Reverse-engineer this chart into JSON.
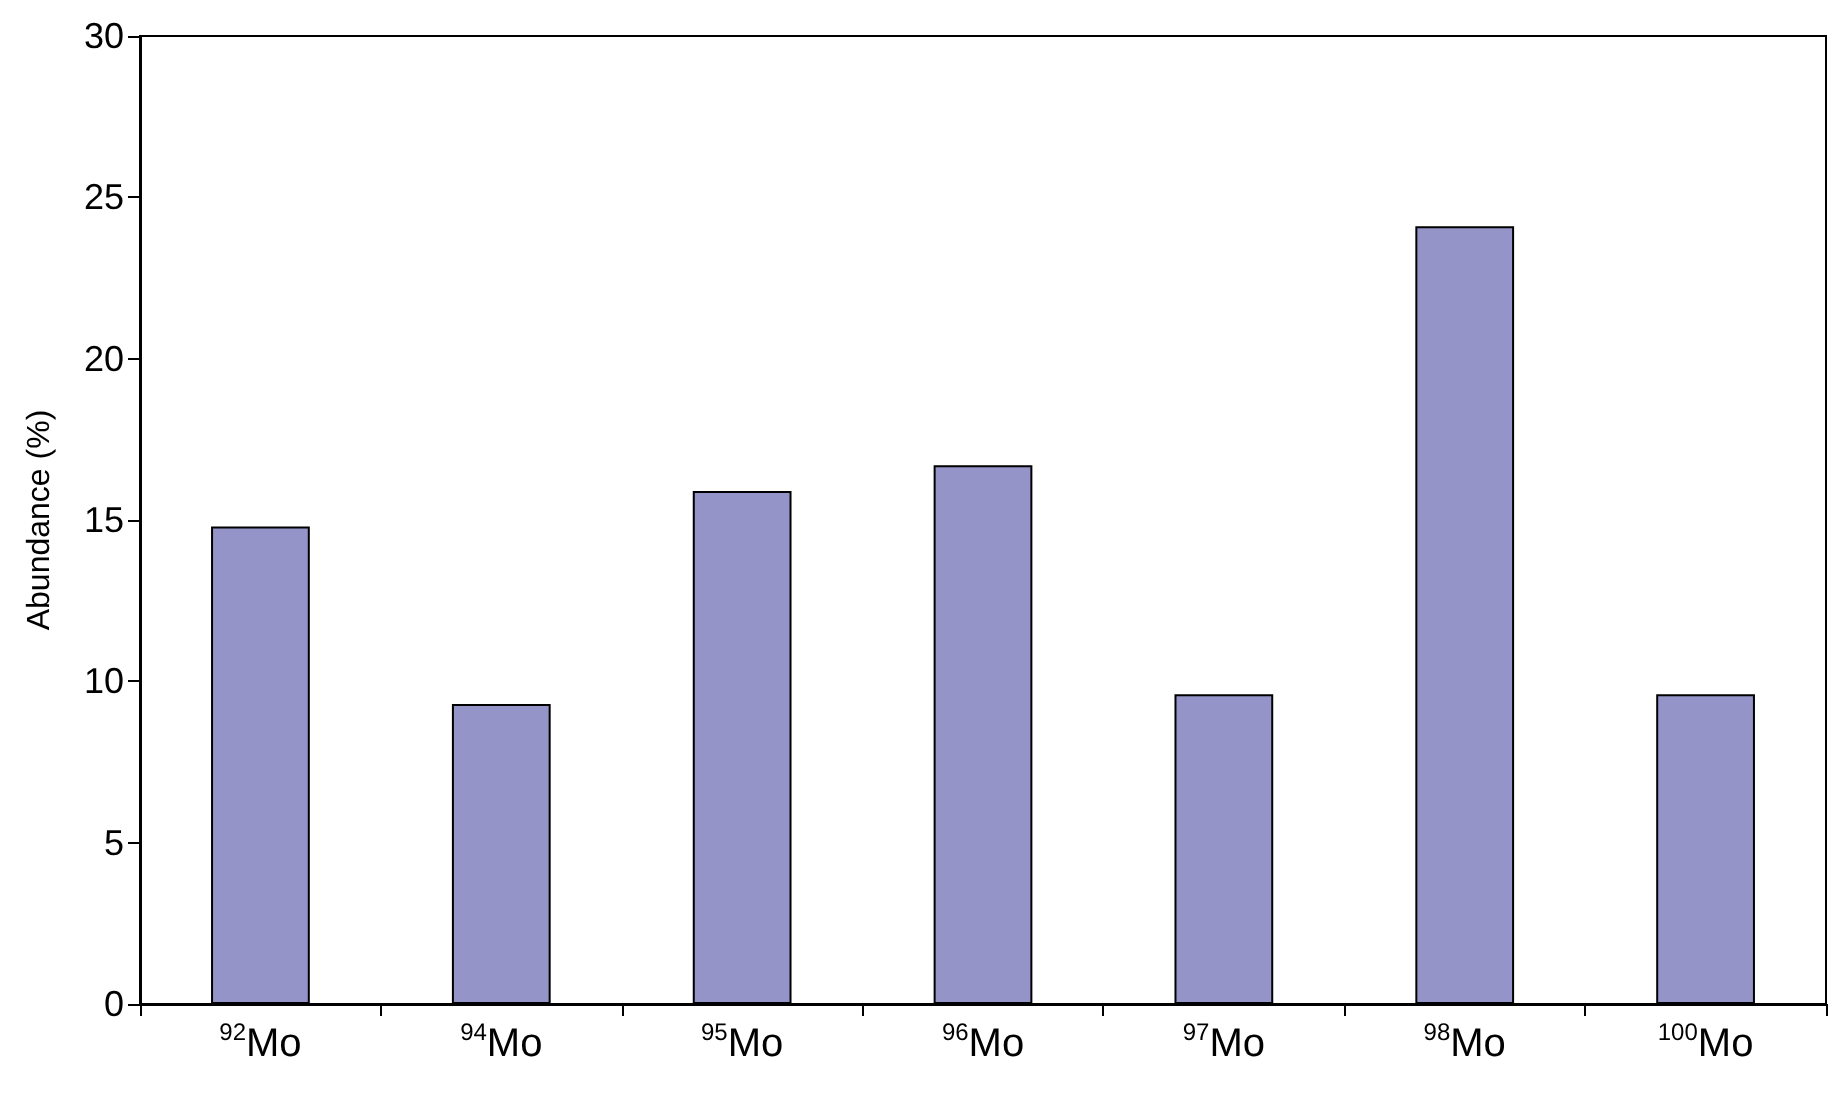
{
  "chart_data": {
    "type": "bar",
    "ylabel": "Abundance (%)",
    "categories": [
      "$^{92}$Mo",
      "$^{94}$Mo",
      "$^{95}$Mo",
      "$^{96}$Mo",
      "$^{97}$Mo",
      "$^{98}$Mo",
      "$^{100}$Mo"
    ],
    "values": [
      14.8,
      9.3,
      15.9,
      16.7,
      9.6,
      24.1,
      9.6
    ],
    "color": "#9494c8",
    "ylim": [
      0,
      30
    ],
    "yticks": [
      0,
      5,
      10,
      15,
      20,
      25,
      30
    ],
    "grid": false
  }
}
